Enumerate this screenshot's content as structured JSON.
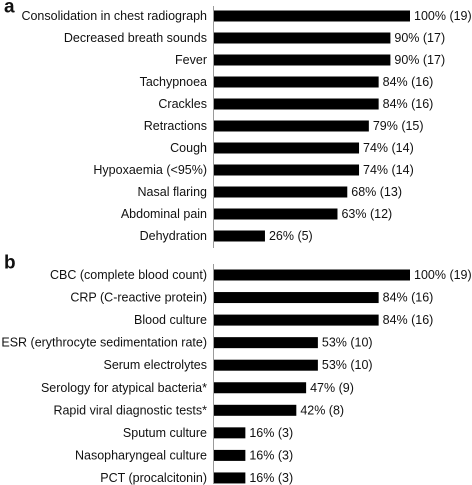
{
  "colors": {
    "bar": "#000000",
    "axis": "#9a9a9a",
    "text": "#111111"
  },
  "chart_data": [
    {
      "type": "bar",
      "orientation": "horizontal",
      "panel_label": "a",
      "xlim": [
        0,
        100
      ],
      "grid": false,
      "categories": [
        "Consolidation in chest radiograph",
        "Decreased breath sounds",
        "Fever",
        "Tachypnoea",
        "Crackles",
        "Retractions",
        "Cough",
        "Hypoxaemia (<95%)",
        "Nasal flaring",
        "Abdominal pain",
        "Dehydration"
      ],
      "values": [
        100,
        90,
        90,
        84,
        84,
        79,
        74,
        74,
        68,
        63,
        26
      ],
      "data_labels": [
        "100% (19)",
        "90% (17)",
        "90% (17)",
        "84% (16)",
        "84% (16)",
        "79% (15)",
        "74% (14)",
        "74% (14)",
        "68% (13)",
        "63% (12)",
        "26% (5)"
      ]
    },
    {
      "type": "bar",
      "orientation": "horizontal",
      "panel_label": "b",
      "xlim": [
        0,
        100
      ],
      "grid": false,
      "categories": [
        "CBC (complete blood count)",
        "CRP (C-reactive protein)",
        "Blood culture",
        "ESR (erythrocyte sedimentation rate)",
        "Serum electrolytes",
        "Serology for atypical  bacteria*",
        "Rapid viral diagnostic tests*",
        "Sputum culture",
        "Nasopharyngeal culture",
        "PCT (procalcitonin)"
      ],
      "values": [
        100,
        84,
        84,
        53,
        53,
        47,
        42,
        16,
        16,
        16
      ],
      "data_labels": [
        "100% (19)",
        "84% (16)",
        "84% (16)",
        "53% (10)",
        "53% (10)",
        "47% (9)",
        "42% (8)",
        "16% (3)",
        "16% (3)",
        "16% (3)"
      ]
    }
  ]
}
